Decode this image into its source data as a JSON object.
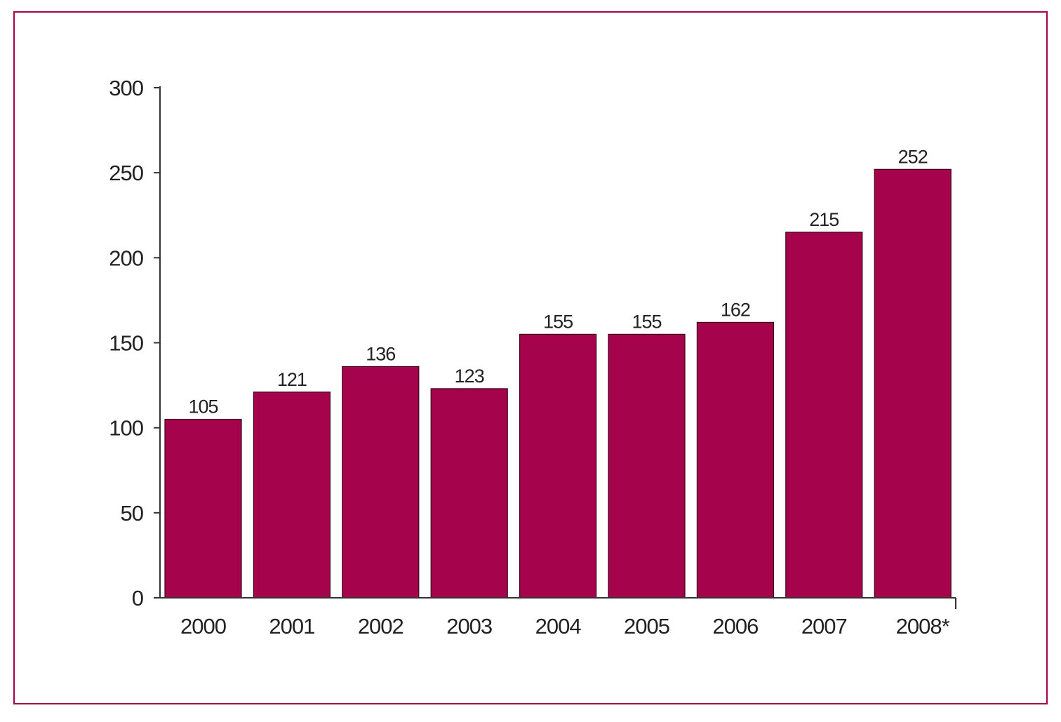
{
  "chart_data": {
    "type": "bar",
    "categories": [
      "2000",
      "2001",
      "2002",
      "2003",
      "2004",
      "2005",
      "2006",
      "2007",
      "2008*"
    ],
    "values": [
      105,
      121,
      136,
      123,
      155,
      155,
      162,
      215,
      252
    ],
    "data_labels": [
      "105",
      "121",
      "136",
      "123",
      "155",
      "155",
      "162",
      "215",
      "252"
    ],
    "y_ticks": [
      "0",
      "50",
      "100",
      "150",
      "200",
      "250",
      "300"
    ],
    "ylim": [
      0,
      300
    ],
    "bar_color": "#a5044c",
    "frame_color": "#a5044c",
    "grid": false,
    "legend": "none"
  }
}
